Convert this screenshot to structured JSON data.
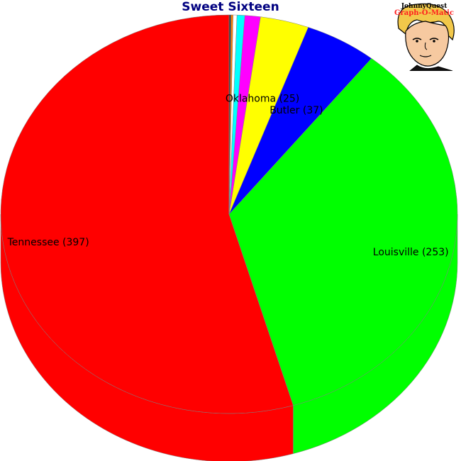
{
  "chart_data": {
    "type": "pie",
    "title": "Sweet Sixteen",
    "slices": [
      {
        "label": "Tennessee (397)",
        "name": "Tennessee",
        "value": 397,
        "color": "#ff0000",
        "show_label": true
      },
      {
        "label": "Louisville (253)",
        "name": "Louisville",
        "value": 253,
        "color": "#00ff00",
        "show_label": true
      },
      {
        "label": "Butler (37)",
        "name": "Butler",
        "value": 37,
        "color": "#0000ff",
        "show_label": true
      },
      {
        "label": "Oklahoma (25)",
        "name": "Oklahoma",
        "value": 25,
        "color": "#ffff00",
        "show_label": true
      },
      {
        "label": "",
        "name": "",
        "value": 8,
        "color": "#ff00ff",
        "show_label": false
      },
      {
        "label": "",
        "name": "",
        "value": 4,
        "color": "#00ffff",
        "show_label": false
      },
      {
        "label": "",
        "name": "",
        "value": 2,
        "color": "#ffffff",
        "show_label": false
      },
      {
        "label": "",
        "name": "",
        "value": 1,
        "color": "#ff8000",
        "show_label": false
      },
      {
        "label": "",
        "name": "",
        "value": 1,
        "color": "#404040",
        "show_label": false
      }
    ]
  },
  "logo": {
    "line1": "JohnnyQuest",
    "line2": "Graph-O-Matic"
  }
}
